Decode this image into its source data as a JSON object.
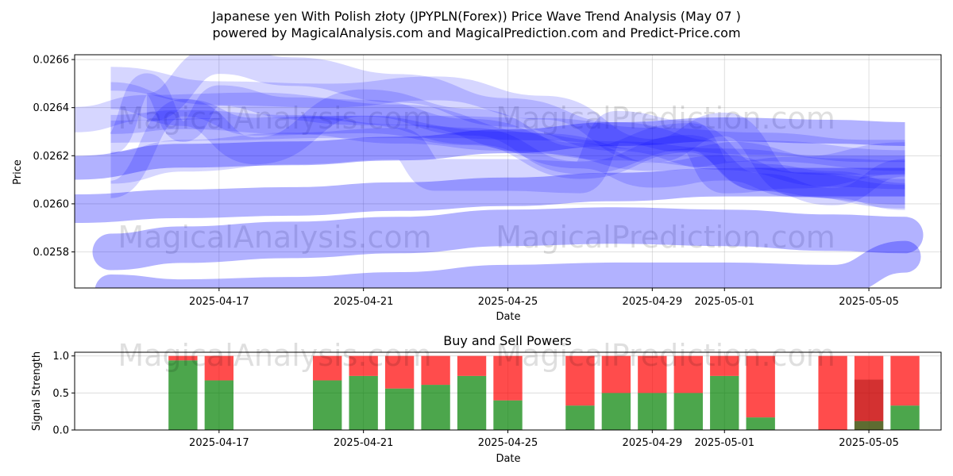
{
  "title_line1": "Japanese yen With Polish złoty (JPYPLN(Forex)) Price Wave Trend Analysis (May 07 )",
  "title_line2": "powered by MagicalAnalysis.com and MagicalPrediction.com and Predict-Price.com",
  "watermarks": [
    "MagicalAnalysis.com",
    "MagicalPrediction.com"
  ],
  "colors": {
    "wave": "#0000ff",
    "buy": "#008000",
    "sell": "#ff0000"
  },
  "chart_data": [
    {
      "type": "line",
      "title": "",
      "xlabel": "Date",
      "ylabel": "Price",
      "x_ticks": [
        "2025-04-17",
        "2025-04-21",
        "2025-04-25",
        "2025-04-29",
        "2025-05-01",
        "2025-05-05"
      ],
      "y_ticks": [
        "0.0258",
        "0.0260",
        "0.0262",
        "0.0264",
        "0.0266"
      ],
      "xlim": [
        "2025-04-13",
        "2025-05-07"
      ],
      "ylim": [
        0.02565,
        0.02662
      ],
      "grid": true,
      "series": [
        {
          "x": [
            "2025-04-14",
            "2025-04-16",
            "2025-04-19",
            "2025-04-22",
            "2025-04-25",
            "2025-04-28",
            "2025-05-01",
            "2025-05-04",
            "2025-05-06"
          ],
          "y": [
            0.0258,
            0.02583,
            0.02585,
            0.02587,
            0.0259,
            0.02591,
            0.0259,
            0.02588,
            0.02587
          ]
        },
        {
          "x": [
            "2025-04-14",
            "2025-04-16",
            "2025-04-19",
            "2025-04-22",
            "2025-04-25",
            "2025-04-28",
            "2025-05-01",
            "2025-05-04",
            "2025-05-06"
          ],
          "y": [
            0.02564,
            0.02562,
            0.02563,
            0.02565,
            0.02568,
            0.02569,
            0.02569,
            0.02568,
            0.02578
          ]
        },
        {
          "x": [
            "2025-04-13",
            "2025-04-16",
            "2025-04-19",
            "2025-04-22",
            "2025-04-25",
            "2025-04-28",
            "2025-05-01",
            "2025-05-04",
            "2025-05-06"
          ],
          "y": [
            0.02615,
            0.0262,
            0.02621,
            0.02623,
            0.02626,
            0.02629,
            0.02631,
            0.0263,
            0.02629
          ]
        },
        {
          "x": [
            "2025-04-13",
            "2025-04-16",
            "2025-04-19",
            "2025-04-22",
            "2025-04-25",
            "2025-04-28",
            "2025-05-01",
            "2025-05-04",
            "2025-05-06"
          ],
          "y": [
            0.02598,
            0.026,
            0.02601,
            0.02603,
            0.02605,
            0.02607,
            0.02609,
            0.02609,
            0.02609
          ]
        },
        {
          "x": [
            "2025-04-14",
            "2025-04-16",
            "2025-04-19",
            "2025-04-22",
            "2025-04-25",
            "2025-04-28",
            "2025-05-01",
            "2025-05-04",
            "2025-05-06"
          ],
          "y": [
            0.02633,
            0.02635,
            0.02633,
            0.02629,
            0.02626,
            0.02622,
            0.02619,
            0.02616,
            0.02616
          ]
        },
        {
          "x": [
            "2025-04-14",
            "2025-04-16",
            "2025-04-19",
            "2025-04-22",
            "2025-04-23",
            "2025-04-25",
            "2025-04-27",
            "2025-04-28",
            "2025-04-30",
            "2025-05-01",
            "2025-05-03",
            "2025-05-06"
          ],
          "y": [
            0.02615,
            0.0262,
            0.02623,
            0.02625,
            0.02612,
            0.02612,
            0.02611,
            0.02632,
            0.02628,
            0.02611,
            0.02613,
            0.02619
          ]
        },
        {
          "x": [
            "2025-04-13",
            "2025-04-15",
            "2025-04-18",
            "2025-04-21",
            "2025-04-24",
            "2025-04-27",
            "2025-04-29",
            "2025-05-01",
            "2025-05-03",
            "2025-05-06"
          ],
          "y": [
            0.02635,
            0.0264,
            0.02641,
            0.02638,
            0.0263,
            0.0262,
            0.02612,
            0.02615,
            0.02608,
            0.02605
          ]
        },
        {
          "x": [
            "2025-04-14",
            "2025-04-17",
            "2025-04-20",
            "2025-04-23",
            "2025-04-26",
            "2025-04-29",
            "2025-05-02",
            "2025-05-05",
            "2025-05-06"
          ],
          "y": [
            0.0263,
            0.02631,
            0.02632,
            0.02632,
            0.02631,
            0.02627,
            0.02625,
            0.02622,
            0.02622
          ]
        },
        {
          "x": [
            "2025-04-14",
            "2025-04-15",
            "2025-04-16",
            "2025-04-17",
            "2025-04-19",
            "2025-04-22",
            "2025-04-26",
            "2025-04-29",
            "2025-05-02",
            "2025-05-06"
          ],
          "y": [
            0.02625,
            0.0265,
            0.0263,
            0.02645,
            0.0264,
            0.02637,
            0.02625,
            0.02618,
            0.02622,
            0.02618
          ]
        },
        {
          "x": [
            "2025-04-14",
            "2025-04-16",
            "2025-04-18",
            "2025-04-21",
            "2025-04-24",
            "2025-04-27",
            "2025-04-30",
            "2025-05-02",
            "2025-05-04",
            "2025-05-06"
          ],
          "y": [
            0.02645,
            0.02638,
            0.02622,
            0.02642,
            0.02634,
            0.02618,
            0.02628,
            0.02611,
            0.02608,
            0.02603
          ]
        },
        {
          "x": [
            "2025-04-14",
            "2025-04-17",
            "2025-04-20",
            "2025-04-23",
            "2025-04-26",
            "2025-04-29",
            "2025-05-01",
            "2025-05-03",
            "2025-05-06"
          ],
          "y": [
            0.02652,
            0.02646,
            0.02645,
            0.02648,
            0.0264,
            0.02622,
            0.02633,
            0.02608,
            0.02603
          ]
        },
        {
          "x": [
            "2025-04-15",
            "2025-04-17",
            "2025-04-19",
            "2025-04-22",
            "2025-04-25",
            "2025-04-28",
            "2025-05-01",
            "2025-05-04",
            "2025-05-06"
          ],
          "y": [
            0.0264,
            0.0266,
            0.02655,
            0.02648,
            0.02638,
            0.02628,
            0.0262,
            0.02613,
            0.02612
          ]
        },
        {
          "x": [
            "2025-04-14",
            "2025-04-16",
            "2025-04-18",
            "2025-04-21",
            "2025-04-24",
            "2025-04-27",
            "2025-04-30",
            "2025-05-02",
            "2025-05-04",
            "2025-05-06"
          ],
          "y": [
            0.02606,
            0.0264,
            0.02632,
            0.02633,
            0.02628,
            0.02614,
            0.02625,
            0.02609,
            0.02603,
            0.02615
          ]
        }
      ]
    },
    {
      "type": "bar",
      "title": "Buy and Sell Powers",
      "xlabel": "Date",
      "ylabel": "Signal Strength",
      "x_ticks": [
        "2025-04-17",
        "2025-04-21",
        "2025-04-25",
        "2025-04-29",
        "2025-05-01",
        "2025-05-05"
      ],
      "y_ticks": [
        "0.0",
        "0.5",
        "1.0"
      ],
      "ylim": [
        0,
        1.05
      ],
      "grid": true,
      "categories": [
        "2025-04-16",
        "2025-04-17",
        "2025-04-20",
        "2025-04-21",
        "2025-04-22",
        "2025-04-23",
        "2025-04-24",
        "2025-04-25",
        "2025-04-27",
        "2025-04-28",
        "2025-04-29",
        "2025-04-30",
        "2025-05-01",
        "2025-05-02",
        "2025-05-04",
        "2025-05-05",
        "2025-05-06"
      ],
      "series": [
        {
          "name": "Buy",
          "values": [
            0.94,
            0.67,
            0.67,
            0.73,
            0.56,
            0.61,
            0.73,
            0.4,
            0.33,
            0.5,
            0.5,
            0.5,
            0.73,
            0.17,
            0.0,
            0.12,
            0.33
          ]
        },
        {
          "name": "Sell",
          "values": [
            0.06,
            0.33,
            0.33,
            0.27,
            0.44,
            0.39,
            0.27,
            0.6,
            0.67,
            0.5,
            0.5,
            0.5,
            0.27,
            0.83,
            1.0,
            0.88,
            0.67
          ]
        }
      ]
    }
  ]
}
